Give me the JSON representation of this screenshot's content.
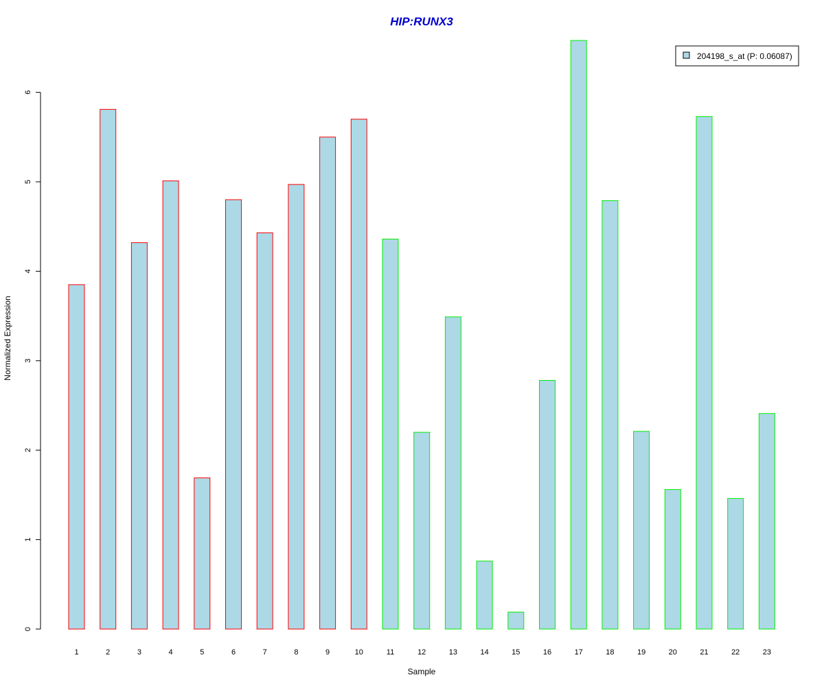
{
  "chart_data": {
    "type": "bar",
    "title": "HIP:RUNX3",
    "title_color": "#0000cc",
    "xlabel": "Sample",
    "ylabel": "Normalized Expression",
    "ylim": [
      0,
      6.6
    ],
    "yticks": [
      0,
      1,
      2,
      3,
      4,
      5,
      6
    ],
    "categories": [
      "1",
      "2",
      "3",
      "4",
      "5",
      "6",
      "7",
      "8",
      "9",
      "10",
      "11",
      "12",
      "13",
      "14",
      "15",
      "16",
      "17",
      "18",
      "19",
      "20",
      "21",
      "22",
      "23"
    ],
    "series": [
      {
        "name": "204198_s_at (P: 0.06087)",
        "fill": "#add8e6",
        "values": [
          3.85,
          5.81,
          4.32,
          5.01,
          1.69,
          4.8,
          4.43,
          4.97,
          5.5,
          5.7,
          4.36,
          2.2,
          3.49,
          0.76,
          0.19,
          2.78,
          6.58,
          4.79,
          2.21,
          1.56,
          5.73,
          1.46,
          2.41
        ]
      }
    ],
    "groups": [
      {
        "count": 10,
        "border": "#ff0000"
      },
      {
        "count": 13,
        "border": "#00ee00"
      }
    ],
    "legend_position": "top-right",
    "grid": false
  }
}
